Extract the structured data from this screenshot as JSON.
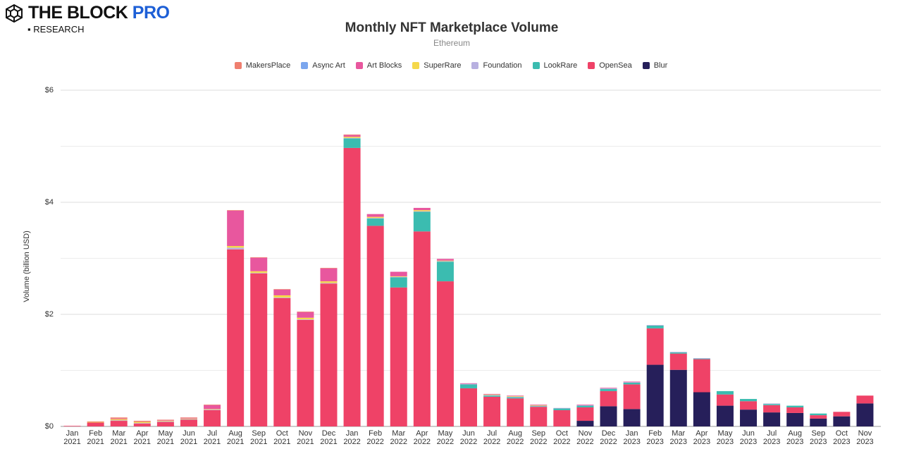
{
  "brand": {
    "name": "THE BLOCK",
    "pro": "PRO",
    "sub": "RESEARCH"
  },
  "chart_data": {
    "type": "stacked_bar",
    "title": "Monthly NFT Marketplace Volume",
    "subtitle": "Ethereum",
    "y_label": "Volume (billion USD)",
    "categories": [
      "Jan 2021",
      "Feb 2021",
      "Mar 2021",
      "Apr 2021",
      "May 2021",
      "Jun 2021",
      "Jul 2021",
      "Aug 2021",
      "Sep 2021",
      "Oct 2021",
      "Nov 2021",
      "Dec 2021",
      "Jan 2022",
      "Feb 2022",
      "Mar 2022",
      "Apr 2022",
      "May 2022",
      "Jun 2022",
      "Jul 2022",
      "Aug 2022",
      "Sep 2022",
      "Oct 2022",
      "Nov 2022",
      "Dec 2022",
      "Jan 2023",
      "Feb 2023",
      "Mar 2023",
      "Apr 2023",
      "May 2023",
      "Jun 2023",
      "Jul 2023",
      "Aug 2023",
      "Sep 2023",
      "Oct 2023",
      "Nov 2023"
    ],
    "series": [
      {
        "name": "MakersPlace",
        "color": "#ef7f6f",
        "values": [
          0,
          0.01,
          0.02,
          0.02,
          0.01,
          0.01,
          0.01,
          0.01,
          0.01,
          0.01,
          0.01,
          0.01,
          0.01,
          0,
          0,
          0,
          0,
          0,
          0,
          0,
          0,
          0,
          0,
          0,
          0,
          0,
          0,
          0,
          0,
          0,
          0,
          0,
          0,
          0,
          0
        ]
      },
      {
        "name": "Async Art",
        "color": "#7ba6ee",
        "values": [
          0,
          0,
          0,
          0,
          0,
          0,
          0,
          0,
          0,
          0,
          0,
          0,
          0,
          0,
          0,
          0,
          0,
          0,
          0,
          0,
          0,
          0,
          0,
          0,
          0,
          0,
          0,
          0,
          0,
          0,
          0,
          0,
          0,
          0,
          0
        ]
      },
      {
        "name": "Art Blocks",
        "color": "#e8579e",
        "values": [
          0,
          0,
          0.01,
          0,
          0.01,
          0.01,
          0.07,
          0.63,
          0.24,
          0.1,
          0.1,
          0.23,
          0.03,
          0.05,
          0.08,
          0.04,
          0.03,
          0.01,
          0.01,
          0.01,
          0.01,
          0,
          0.01,
          0.01,
          0.01,
          0,
          0,
          0,
          0,
          0,
          0,
          0,
          0,
          0,
          0
        ]
      },
      {
        "name": "SuperRare",
        "color": "#f5d84a",
        "values": [
          0,
          0.01,
          0.02,
          0.02,
          0.01,
          0.01,
          0.01,
          0.03,
          0.03,
          0.04,
          0.03,
          0.03,
          0.02,
          0.02,
          0.01,
          0.02,
          0.01,
          0,
          0.01,
          0.01,
          0.01,
          0,
          0,
          0,
          0,
          0,
          0,
          0,
          0,
          0,
          0,
          0,
          0,
          0,
          0
        ]
      },
      {
        "name": "Foundation",
        "color": "#b8b0e0",
        "values": [
          0,
          0,
          0.01,
          0.01,
          0.01,
          0.01,
          0.01,
          0.03,
          0.01,
          0.01,
          0.01,
          0.01,
          0.01,
          0.01,
          0.01,
          0.01,
          0.01,
          0.01,
          0.01,
          0.01,
          0.01,
          0.01,
          0.01,
          0.01,
          0.01,
          0.01,
          0.01,
          0.01,
          0,
          0,
          0.01,
          0,
          0,
          0,
          0
        ]
      },
      {
        "name": "LookRare",
        "color": "#3bbcb0",
        "values": [
          0,
          0,
          0,
          0,
          0,
          0,
          0,
          0,
          0,
          0,
          0,
          0,
          0.17,
          0.13,
          0.18,
          0.35,
          0.35,
          0.07,
          0.02,
          0.02,
          0.01,
          0.03,
          0.03,
          0.04,
          0.03,
          0.05,
          0.02,
          0.01,
          0.06,
          0.04,
          0.02,
          0.03,
          0.03,
          0,
          0
        ]
      },
      {
        "name": "OpenSea",
        "color": "#ef4267",
        "values": [
          0.01,
          0.07,
          0.1,
          0.05,
          0.08,
          0.12,
          0.29,
          3.16,
          2.73,
          2.29,
          1.9,
          2.55,
          4.97,
          3.58,
          2.48,
          3.48,
          2.59,
          0.68,
          0.53,
          0.5,
          0.35,
          0.29,
          0.24,
          0.27,
          0.44,
          0.65,
          0.29,
          0.59,
          0.2,
          0.15,
          0.13,
          0.1,
          0.06,
          0.08,
          0.14
        ]
      },
      {
        "name": "Blur",
        "color": "#261f5a",
        "values": [
          0,
          0,
          0,
          0,
          0,
          0,
          0,
          0,
          0,
          0,
          0,
          0,
          0,
          0,
          0,
          0,
          0,
          0,
          0,
          0,
          0,
          0,
          0.1,
          0.36,
          0.31,
          1.1,
          1.01,
          0.61,
          0.37,
          0.3,
          0.25,
          0.24,
          0.14,
          0.18,
          0.41
        ]
      }
    ],
    "ylim": [
      0,
      6
    ],
    "yticks": [
      {
        "value": 0,
        "label": "$0"
      },
      {
        "value": 2,
        "label": "$2"
      },
      {
        "value": 4,
        "label": "$4"
      },
      {
        "value": 6,
        "label": "$6"
      }
    ],
    "minor_yticks": [
      1,
      3,
      5
    ],
    "grid": true,
    "legend": "top"
  }
}
